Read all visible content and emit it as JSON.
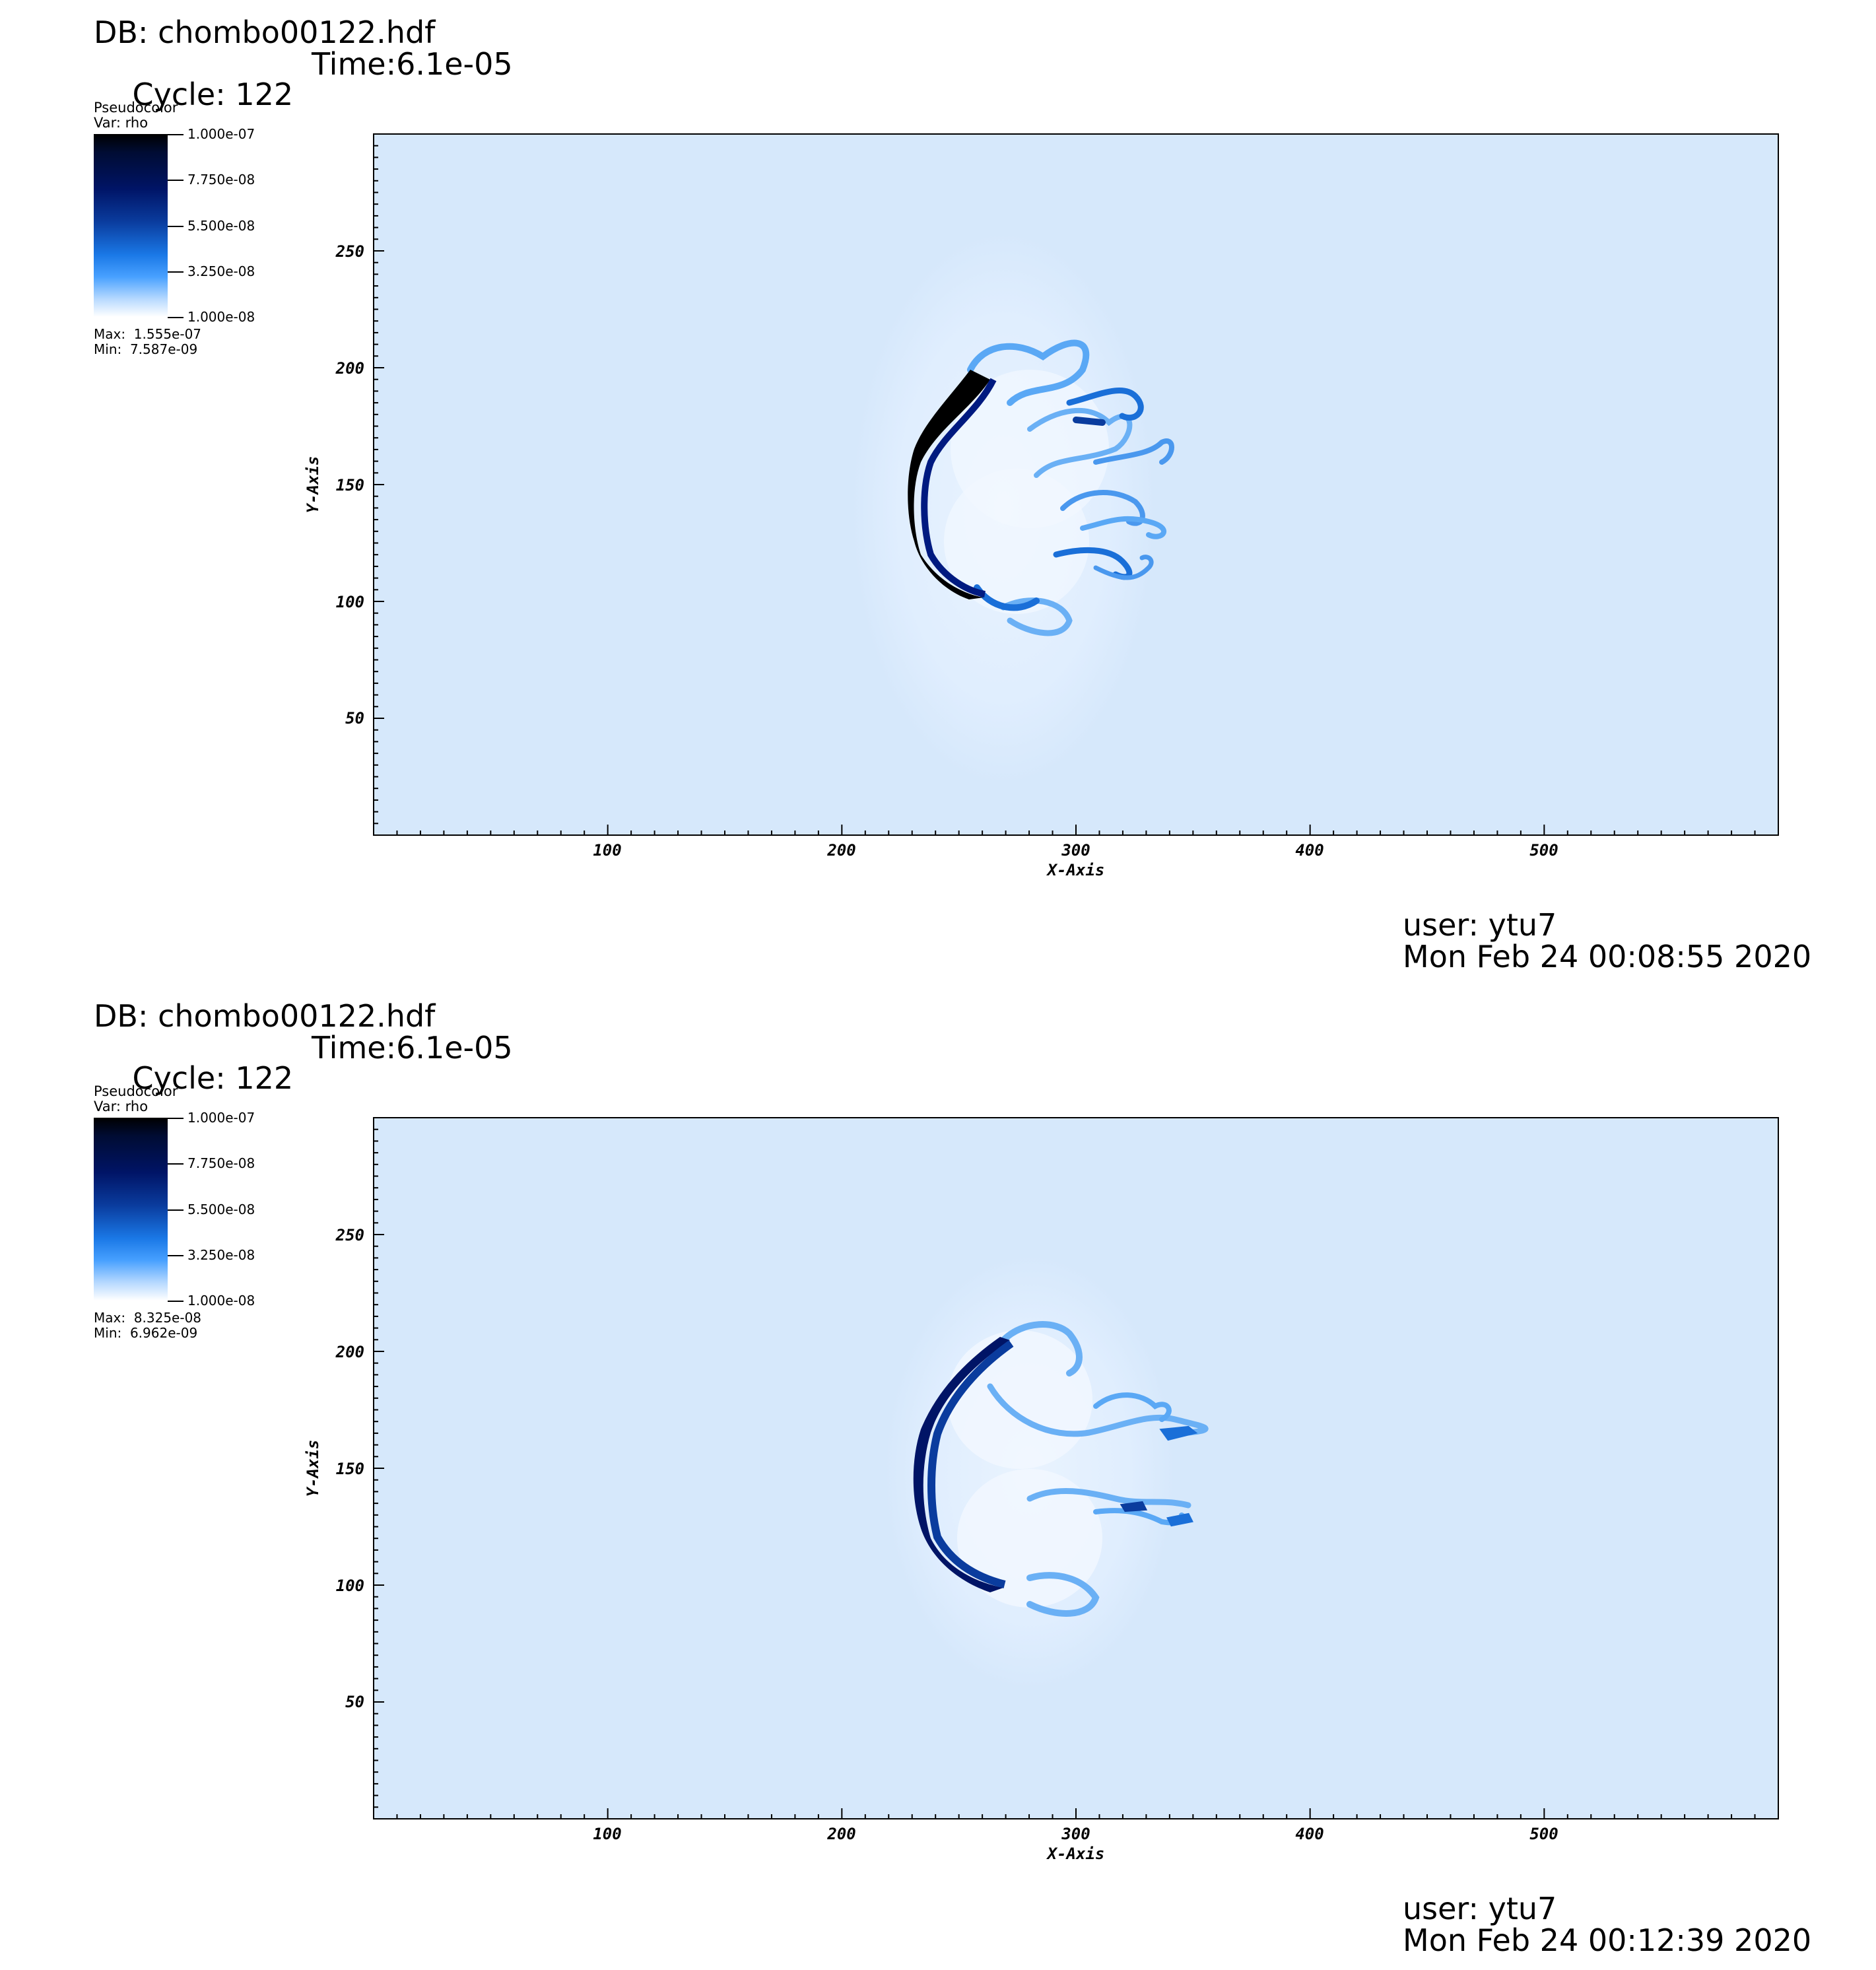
{
  "panels": [
    {
      "db_label": "DB: chombo00122.hdf",
      "cycle_label": "Cycle: 122",
      "time_label": "Time:6.1e-05",
      "legend": {
        "plot_type": "Pseudocolor",
        "var_label": "Var: rho",
        "max_label": "Max:  1.555e-07",
        "min_label": "Min:  7.587e-09"
      },
      "user_label": "user: ytu7",
      "date_label": "Mon Feb 24 00:08:55 2020"
    },
    {
      "db_label": "DB: chombo00122.hdf",
      "cycle_label": "Cycle: 122",
      "time_label": "Time:6.1e-05",
      "legend": {
        "plot_type": "Pseudocolor",
        "var_label": "Var: rho",
        "max_label": "Max:  8.325e-08",
        "min_label": "Min:  6.962e-09"
      },
      "user_label": "user: ytu7",
      "date_label": "Mon Feb 24 00:12:39 2020"
    }
  ],
  "colors": {
    "background_field": "#d6e8fb",
    "dense_dark": "#000000",
    "dense_blue": "#001a80",
    "mid_blue": "#1a78e6",
    "light": "#ffffff"
  },
  "chart_data": [
    {
      "type": "heatmap",
      "title": "DB: chombo00122.hdf",
      "xlabel": "X-Axis",
      "ylabel": "Y-Axis",
      "xlim": [
        0,
        600
      ],
      "ylim": [
        0,
        300
      ],
      "xticks": [
        100,
        200,
        300,
        400,
        500
      ],
      "yticks": [
        50,
        100,
        150,
        200,
        250
      ],
      "colorbar": {
        "variable": "rho",
        "tick_labels": [
          "1.000e-07",
          "7.750e-08",
          "5.500e-08",
          "3.250e-08",
          "1.000e-08"
        ],
        "range": [
          1e-08,
          1e-07
        ],
        "max": 1.555e-07,
        "min": 7.587e-09
      },
      "grid": false,
      "legend_placement": "top-left"
    },
    {
      "type": "heatmap",
      "title": "DB: chombo00122.hdf",
      "xlabel": "X-Axis",
      "ylabel": "Y-Axis",
      "xlim": [
        0,
        600
      ],
      "ylim": [
        0,
        300
      ],
      "xticks": [
        100,
        200,
        300,
        400,
        500
      ],
      "yticks": [
        50,
        100,
        150,
        200,
        250
      ],
      "colorbar": {
        "variable": "rho",
        "tick_labels": [
          "1.000e-07",
          "7.750e-08",
          "5.500e-08",
          "3.250e-08",
          "1.000e-08"
        ],
        "range": [
          1e-08,
          1e-07
        ],
        "max": 8.325e-08,
        "min": 6.962e-09
      },
      "grid": false,
      "legend_placement": "top-left"
    }
  ]
}
